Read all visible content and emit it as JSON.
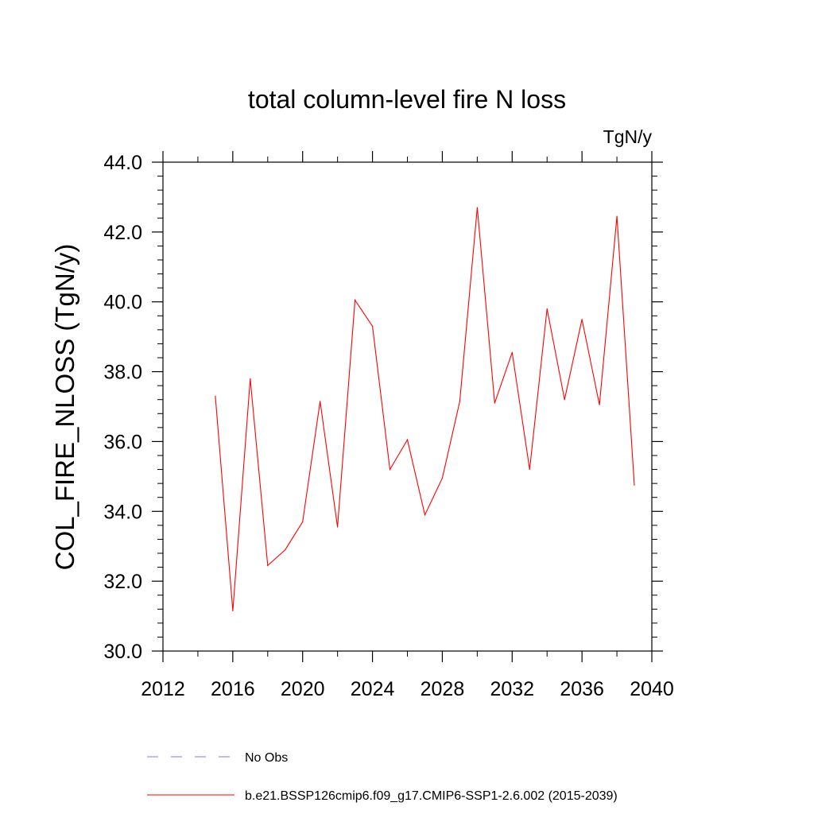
{
  "chart_data": {
    "type": "line",
    "title": "total column-level fire N loss",
    "units_label": "TgN/y",
    "ylabel": "COL_FIRE_NLOSS  (TgN/y)",
    "xlabel": "",
    "xlim": [
      2012,
      2040
    ],
    "ylim": [
      30.0,
      44.0
    ],
    "x_ticks": [
      "2012",
      "2016",
      "2020",
      "2024",
      "2028",
      "2032",
      "2036",
      "2040"
    ],
    "y_ticks": [
      "30.0",
      "32.0",
      "34.0",
      "36.0",
      "38.0",
      "40.0",
      "42.0",
      "44.0"
    ],
    "grid": false,
    "legend_position": "bottom",
    "legend": [
      {
        "label": "No Obs",
        "color": "#7b7bd6",
        "style": "dashed"
      },
      {
        "label": "b.e21.BSSP126cmip6.f09_g17.CMIP6-SSP1-2.6.002 (2015-2039)",
        "color": "#ff0000",
        "style": "solid"
      }
    ],
    "series": [
      {
        "color": "#ff0000",
        "x": [
          2015,
          2016,
          2017,
          2018,
          2019,
          2020,
          2021,
          2022,
          2023,
          2024,
          2025,
          2026,
          2027,
          2028,
          2029,
          2030,
          2031,
          2032,
          2033,
          2034,
          2035,
          2036,
          2037,
          2038,
          2039
        ],
        "y": [
          37.3,
          31.15,
          37.8,
          32.45,
          32.9,
          33.7,
          37.15,
          33.55,
          40.05,
          39.3,
          35.2,
          36.05,
          33.9,
          34.95,
          37.15,
          42.7,
          37.1,
          38.55,
          35.2,
          39.8,
          37.2,
          39.5,
          37.05,
          42.45,
          34.75
        ]
      }
    ]
  }
}
